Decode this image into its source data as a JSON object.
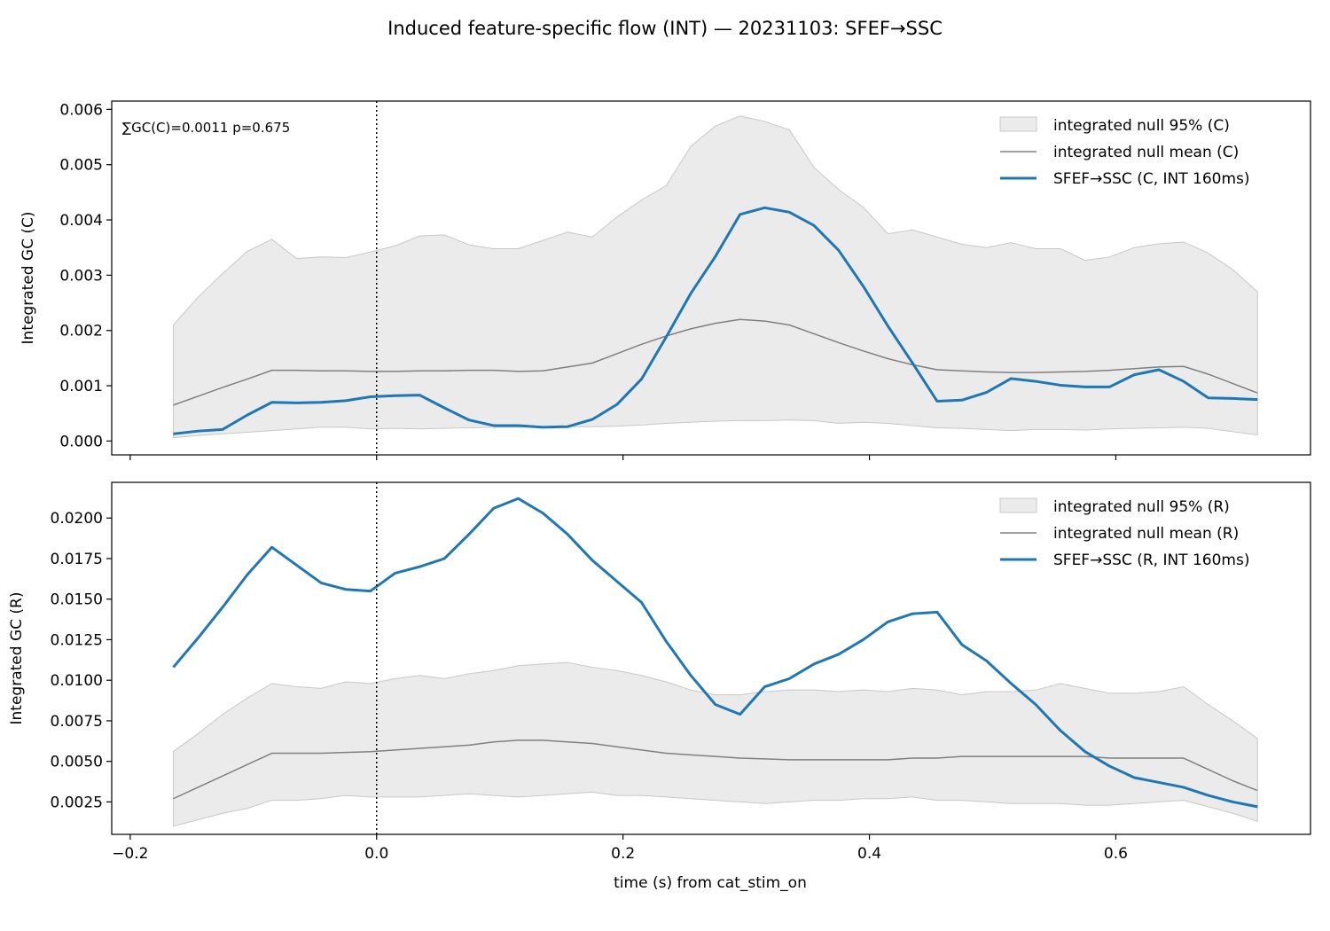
{
  "figure": {
    "title": "Induced feature-specific flow (INT) — 20231103: SFEF→SSC",
    "xlabel": "time (s) from cat_stim_on"
  },
  "colors": {
    "observed": "#1f77b4",
    "null_mean": "#808080",
    "null_band": "#d3d3d3",
    "band_edge": "#c8c8c8",
    "frame": "#000000"
  },
  "chart_data": [
    {
      "type": "line",
      "panel": "C",
      "ylabel": "Integrated GC (C)",
      "xlabel": "",
      "xlim": [
        -0.215,
        0.758
      ],
      "ylim": [
        -0.00025,
        0.00615
      ],
      "xticks": [
        -0.2,
        0.0,
        0.2,
        0.4,
        0.6
      ],
      "xtick_labels": [
        "",
        "",
        "",
        "",
        ""
      ],
      "yticks": [
        0.0,
        0.001,
        0.002,
        0.003,
        0.004,
        0.005,
        0.006
      ],
      "ytick_labels": [
        "0.000",
        "0.001",
        "0.002",
        "0.003",
        "0.004",
        "0.005",
        "0.006"
      ],
      "vline_x": 0.0,
      "annotation": "∑GC(C)=0.0011  p=0.675",
      "legend_position": "top-right",
      "x": [
        -0.165,
        -0.145,
        -0.125,
        -0.105,
        -0.085,
        -0.065,
        -0.045,
        -0.025,
        -0.005,
        0.015,
        0.035,
        0.055,
        0.075,
        0.095,
        0.115,
        0.135,
        0.155,
        0.175,
        0.195,
        0.215,
        0.235,
        0.255,
        0.275,
        0.295,
        0.315,
        0.335,
        0.355,
        0.375,
        0.395,
        0.415,
        0.435,
        0.455,
        0.475,
        0.495,
        0.515,
        0.535,
        0.555,
        0.575,
        0.595,
        0.615,
        0.635,
        0.655,
        0.675,
        0.695,
        0.715
      ],
      "series": [
        {
          "name": "integrated null 95% (C)",
          "kind": "band",
          "lower": [
            6e-05,
            0.0001,
            0.00013,
            0.00016,
            0.00019,
            0.00022,
            0.00025,
            0.00025,
            0.00022,
            0.00023,
            0.00022,
            0.00023,
            0.00024,
            0.00025,
            0.00025,
            0.00026,
            0.00026,
            0.00026,
            0.00027,
            0.00029,
            0.00032,
            0.00034,
            0.00036,
            0.00037,
            0.00037,
            0.00038,
            0.00037,
            0.00032,
            0.00034,
            0.00032,
            0.00028,
            0.00024,
            0.00023,
            0.00021,
            0.00019,
            0.00021,
            0.00021,
            0.0002,
            0.00022,
            0.00023,
            0.00024,
            0.00025,
            0.00023,
            0.00017,
            0.00011
          ],
          "upper": [
            0.0021,
            0.0026,
            0.00303,
            0.00343,
            0.00365,
            0.0033,
            0.00333,
            0.00332,
            0.00342,
            0.00353,
            0.00371,
            0.00373,
            0.00355,
            0.00348,
            0.00348,
            0.00363,
            0.00378,
            0.00369,
            0.00405,
            0.00436,
            0.00462,
            0.00533,
            0.0057,
            0.00588,
            0.00578,
            0.00563,
            0.00495,
            0.00455,
            0.00423,
            0.00375,
            0.00382,
            0.00369,
            0.00356,
            0.0035,
            0.00359,
            0.00348,
            0.00348,
            0.00327,
            0.00333,
            0.0035,
            0.00357,
            0.0036,
            0.0034,
            0.0031,
            0.0027
          ]
        },
        {
          "name": "integrated null mean (C)",
          "kind": "line",
          "values": [
            0.00065,
            0.00081,
            0.00097,
            0.00112,
            0.00128,
            0.00128,
            0.00127,
            0.00127,
            0.00126,
            0.00126,
            0.00127,
            0.00127,
            0.00128,
            0.00128,
            0.00126,
            0.00127,
            0.00134,
            0.00141,
            0.00158,
            0.00175,
            0.0019,
            0.00203,
            0.00213,
            0.0022,
            0.00217,
            0.0021,
            0.00194,
            0.00178,
            0.00163,
            0.00149,
            0.00138,
            0.00129,
            0.00127,
            0.00125,
            0.00124,
            0.00124,
            0.00125,
            0.00126,
            0.00128,
            0.00131,
            0.00134,
            0.00135,
            0.00121,
            0.00104,
            0.00087
          ]
        },
        {
          "name": "SFEF→SSC (C, INT 160ms)",
          "kind": "line",
          "values": [
            0.00013,
            0.00018,
            0.00021,
            0.00047,
            0.0007,
            0.00069,
            0.0007,
            0.00073,
            0.0008,
            0.00082,
            0.00083,
            0.0006,
            0.00038,
            0.00028,
            0.00028,
            0.00025,
            0.00026,
            0.00039,
            0.00066,
            0.00112,
            0.00188,
            0.00267,
            0.00334,
            0.0041,
            0.00422,
            0.00414,
            0.0039,
            0.00345,
            0.0028,
            0.00208,
            0.00141,
            0.00072,
            0.00074,
            0.00088,
            0.00113,
            0.00108,
            0.00101,
            0.00098,
            0.00098,
            0.0012,
            0.00129,
            0.00108,
            0.00078,
            0.00077,
            0.00075
          ]
        }
      ]
    },
    {
      "type": "line",
      "panel": "R",
      "ylabel": "Integrated GC (R)",
      "xlabel": "time (s) from cat_stim_on",
      "xlim": [
        -0.215,
        0.758
      ],
      "ylim": [
        0.0005,
        0.0222
      ],
      "xticks": [
        -0.2,
        0.0,
        0.2,
        0.4,
        0.6
      ],
      "xtick_labels": [
        "−0.2",
        "0.0",
        "0.2",
        "0.4",
        "0.6"
      ],
      "yticks": [
        0.0025,
        0.005,
        0.0075,
        0.01,
        0.0125,
        0.015,
        0.0175,
        0.02
      ],
      "ytick_labels": [
        "0.0025",
        "0.0050",
        "0.0075",
        "0.0100",
        "0.0125",
        "0.0150",
        "0.0175",
        "0.0200"
      ],
      "vline_x": 0.0,
      "annotation": "",
      "legend_position": "top-right",
      "x": [
        -0.165,
        -0.145,
        -0.125,
        -0.105,
        -0.085,
        -0.065,
        -0.045,
        -0.025,
        -0.005,
        0.015,
        0.035,
        0.055,
        0.075,
        0.095,
        0.115,
        0.135,
        0.155,
        0.175,
        0.195,
        0.215,
        0.235,
        0.255,
        0.275,
        0.295,
        0.315,
        0.335,
        0.355,
        0.375,
        0.395,
        0.415,
        0.435,
        0.455,
        0.475,
        0.495,
        0.515,
        0.535,
        0.555,
        0.575,
        0.595,
        0.615,
        0.635,
        0.655,
        0.675,
        0.695,
        0.715
      ],
      "series": [
        {
          "name": "integrated null 95% (R)",
          "kind": "band",
          "lower": [
            0.001,
            0.0014,
            0.0018,
            0.0021,
            0.0026,
            0.0026,
            0.0027,
            0.0029,
            0.0028,
            0.0028,
            0.0028,
            0.0029,
            0.003,
            0.0029,
            0.0028,
            0.0029,
            0.003,
            0.0031,
            0.0029,
            0.0029,
            0.0028,
            0.0027,
            0.0026,
            0.0025,
            0.0024,
            0.0025,
            0.0026,
            0.0026,
            0.0027,
            0.0027,
            0.0028,
            0.0026,
            0.0026,
            0.0025,
            0.0024,
            0.0024,
            0.0024,
            0.0023,
            0.0023,
            0.0024,
            0.0025,
            0.0026,
            0.0022,
            0.0018,
            0.0013
          ],
          "upper": [
            0.0056,
            0.0067,
            0.0079,
            0.0089,
            0.0098,
            0.0096,
            0.0095,
            0.0099,
            0.0098,
            0.0101,
            0.0103,
            0.0101,
            0.0104,
            0.0106,
            0.0109,
            0.011,
            0.0111,
            0.0108,
            0.0106,
            0.0103,
            0.0099,
            0.0094,
            0.0091,
            0.0091,
            0.0093,
            0.0094,
            0.0094,
            0.0093,
            0.0094,
            0.0093,
            0.0095,
            0.0094,
            0.0091,
            0.0093,
            0.0093,
            0.0094,
            0.0098,
            0.0095,
            0.0092,
            0.0092,
            0.0093,
            0.0096,
            0.0085,
            0.0075,
            0.0064
          ]
        },
        {
          "name": "integrated null mean (R)",
          "kind": "line",
          "values": [
            0.0027,
            0.0034,
            0.0041,
            0.0048,
            0.0055,
            0.0055,
            0.0055,
            0.00555,
            0.0056,
            0.0057,
            0.0058,
            0.0059,
            0.006,
            0.0062,
            0.0063,
            0.0063,
            0.0062,
            0.0061,
            0.0059,
            0.0057,
            0.0055,
            0.0054,
            0.0053,
            0.0052,
            0.00515,
            0.0051,
            0.0051,
            0.0051,
            0.0051,
            0.0051,
            0.0052,
            0.0052,
            0.0053,
            0.0053,
            0.0053,
            0.0053,
            0.0053,
            0.0053,
            0.0052,
            0.0052,
            0.0052,
            0.0052,
            0.0045,
            0.0038,
            0.0032
          ]
        },
        {
          "name": "SFEF→SSC (R, INT 160ms)",
          "kind": "line",
          "values": [
            0.0108,
            0.0126,
            0.0145,
            0.0165,
            0.0182,
            0.0171,
            0.016,
            0.0156,
            0.0155,
            0.0166,
            0.017,
            0.0175,
            0.019,
            0.0206,
            0.0212,
            0.0203,
            0.019,
            0.0174,
            0.0161,
            0.0148,
            0.0124,
            0.0103,
            0.0085,
            0.0079,
            0.0096,
            0.0101,
            0.011,
            0.0116,
            0.0125,
            0.0136,
            0.0141,
            0.0142,
            0.0122,
            0.0112,
            0.0098,
            0.0085,
            0.0069,
            0.0056,
            0.0047,
            0.004,
            0.0037,
            0.0034,
            0.0029,
            0.0025,
            0.0022
          ]
        }
      ]
    }
  ]
}
